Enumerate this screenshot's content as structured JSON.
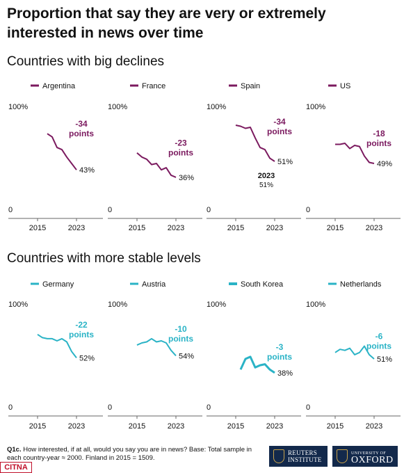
{
  "title": "Proportion that say they are very or extremely interested in news over time",
  "sections": [
    {
      "heading": "Countries with big declines"
    },
    {
      "heading": "Countries with more stable levels"
    }
  ],
  "footnote": {
    "label": "Q1c.",
    "text": "How interested, if at all, would you say you are in news? Base: Total sample in each country-year ≈ 2000. Finland in 2015 = 1509."
  },
  "logos": {
    "reuters": {
      "line1": "REUTERS",
      "line2": "INSTITUTE"
    },
    "oxford": {
      "line1": "UNIVERSITY OF",
      "line2": "OXFORD"
    }
  },
  "watermark": "CITNA",
  "colors": {
    "decline": "#7b1a5f",
    "stable": "#2ab3c6"
  },
  "chart_data": [
    {
      "type": "line",
      "series": [
        {
          "name": "Argentina",
          "x": [
            2017,
            2018,
            2019,
            2020,
            2021,
            2022,
            2023
          ],
          "values": [
            77,
            74,
            64,
            62,
            55,
            49,
            43
          ]
        }
      ],
      "change_label": [
        "-34",
        "points"
      ],
      "end_label": "43%",
      "xticks": [
        "2015",
        "2023"
      ],
      "yticks": [
        "0",
        "100%"
      ],
      "ylim": [
        0,
        100
      ],
      "color": "decline"
    },
    {
      "type": "line",
      "series": [
        {
          "name": "France",
          "x": [
            2015,
            2016,
            2017,
            2018,
            2019,
            2020,
            2021,
            2022,
            2023
          ],
          "values": [
            59,
            55,
            53,
            48,
            49,
            43,
            45,
            38,
            36
          ]
        }
      ],
      "change_label": [
        "-23",
        "points"
      ],
      "end_label": "36%",
      "xticks": [
        "2015",
        "2023"
      ],
      "yticks": [
        "0",
        "100%"
      ],
      "ylim": [
        0,
        100
      ],
      "color": "decline"
    },
    {
      "type": "line",
      "series": [
        {
          "name": "Spain",
          "x": [
            2015,
            2016,
            2017,
            2018,
            2019,
            2020,
            2021,
            2022,
            2023
          ],
          "values": [
            85,
            84,
            82,
            83,
            73,
            64,
            62,
            54,
            51
          ]
        }
      ],
      "change_label": [
        "-34",
        "points"
      ],
      "end_label": "51%",
      "callout": {
        "year": "2023",
        "value": "51%"
      },
      "xticks": [
        "2015",
        "2023"
      ],
      "yticks": [
        "0",
        "100%"
      ],
      "ylim": [
        0,
        100
      ],
      "color": "decline"
    },
    {
      "type": "line",
      "series": [
        {
          "name": "US",
          "x": [
            2015,
            2016,
            2017,
            2018,
            2019,
            2020,
            2021,
            2022,
            2023
          ],
          "values": [
            67,
            67,
            68,
            63,
            66,
            65,
            56,
            50,
            49
          ]
        }
      ],
      "change_label": [
        "-18",
        "points"
      ],
      "end_label": "49%",
      "xticks": [
        "2015",
        "2023"
      ],
      "yticks": [
        "0",
        "100%"
      ],
      "ylim": [
        0,
        100
      ],
      "color": "decline"
    },
    {
      "type": "line",
      "series": [
        {
          "name": "Germany",
          "x": [
            2015,
            2016,
            2017,
            2018,
            2019,
            2020,
            2021,
            2022,
            2023
          ],
          "values": [
            74,
            71,
            70,
            70,
            68,
            70,
            67,
            58,
            52
          ]
        }
      ],
      "change_label": [
        "-22",
        "points"
      ],
      "end_label": "52%",
      "xticks": [
        "2015",
        "2023"
      ],
      "yticks": [
        "0",
        "100%"
      ],
      "ylim": [
        0,
        100
      ],
      "color": "stable"
    },
    {
      "type": "line",
      "series": [
        {
          "name": "Austria",
          "x": [
            2015,
            2016,
            2017,
            2018,
            2019,
            2020,
            2021,
            2022,
            2023
          ],
          "values": [
            64,
            66,
            67,
            70,
            67,
            68,
            66,
            59,
            54
          ]
        }
      ],
      "change_label": [
        "-10",
        "points"
      ],
      "end_label": "54%",
      "xticks": [
        "2015",
        "2023"
      ],
      "yticks": [
        "0",
        "100%"
      ],
      "ylim": [
        0,
        100
      ],
      "color": "stable"
    },
    {
      "type": "line",
      "series": [
        {
          "name": "South Korea",
          "x": [
            2016,
            2017,
            2018,
            2019,
            2020,
            2021,
            2022,
            2023
          ],
          "values": [
            41,
            51,
            53,
            43,
            45,
            46,
            41,
            38
          ]
        }
      ],
      "change_label": [
        "-3",
        "points"
      ],
      "end_label": "38%",
      "xticks": [
        "2015",
        "2023"
      ],
      "yticks": [
        "0",
        "100%"
      ],
      "ylim": [
        0,
        100
      ],
      "color": "stable",
      "thick": true
    },
    {
      "type": "line",
      "series": [
        {
          "name": "Netherlands",
          "x": [
            2015,
            2016,
            2017,
            2018,
            2019,
            2020,
            2021,
            2022,
            2023
          ],
          "values": [
            57,
            60,
            59,
            61,
            55,
            57,
            63,
            55,
            51
          ]
        }
      ],
      "change_label": [
        "-6",
        "points"
      ],
      "end_label": "51%",
      "xticks": [
        "2015",
        "2023"
      ],
      "yticks": [
        "0",
        "100%"
      ],
      "ylim": [
        0,
        100
      ],
      "color": "stable"
    }
  ]
}
